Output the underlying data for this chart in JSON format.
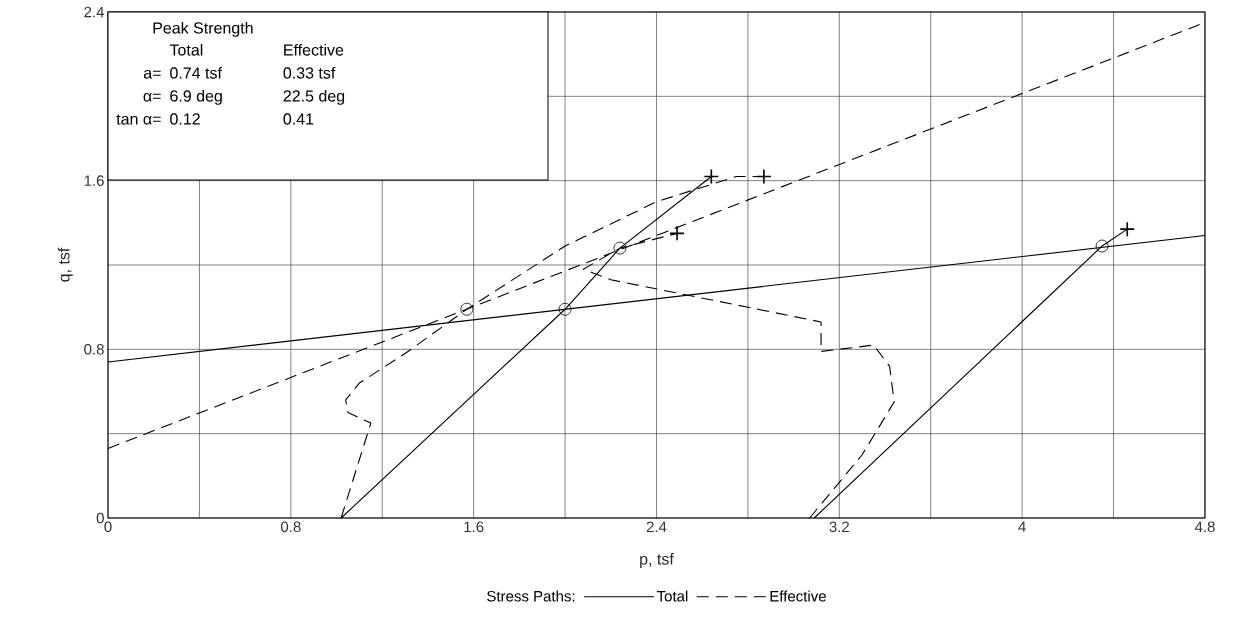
{
  "chart_data": {
    "type": "line",
    "xlabel": "p, tsf",
    "ylabel": "q, tsf",
    "legend_title": "Stress Paths:",
    "legend": "bottom",
    "grid": true,
    "xlim": [
      0,
      4.8
    ],
    "ylim": [
      0,
      2.4
    ],
    "xticks": [
      0,
      {
        "value": 0.4,
        "label": null
      },
      0.8,
      {
        "value": 1.2,
        "label": null
      },
      1.6,
      {
        "value": 2.0,
        "label": null
      },
      2.4,
      {
        "value": 2.8,
        "label": null
      },
      3.2,
      {
        "value": 3.6,
        "label": null
      },
      4,
      {
        "value": 4.4,
        "label": null
      },
      4.8
    ],
    "yticks": [
      0,
      {
        "value": 0.4,
        "label": null
      },
      0.8,
      {
        "value": 1.2,
        "label": null
      },
      1.6,
      {
        "value": 2.0,
        "label": null
      },
      2.4
    ],
    "annotations": [
      "Peak Strength",
      "Total",
      "Effective",
      "a=",
      "0.74 tsf",
      "0.33 tsf",
      "α=",
      "6.9 deg",
      "22.5 deg",
      "tan α=",
      "0.12",
      "0.41"
    ],
    "series": [
      {
        "color": "#000000",
        "line_style": "solid",
        "x": [
          0,
          4.8
        ],
        "values": [
          0.74,
          1.34
        ]
      },
      {
        "color": "#000000",
        "line_style": "dashed",
        "x": [
          0,
          4.8
        ],
        "values": [
          0.33,
          2.35
        ]
      },
      {
        "name": "Total",
        "color": "#000000",
        "line_style": "solid",
        "x": [
          1.02,
          2.0,
          2.24,
          2.64
        ],
        "values": [
          0,
          0.99,
          1.28,
          1.62
        ]
      },
      {
        "color": "#000000",
        "line_style": "solid",
        "x": [
          3.09,
          4.35,
          4.46
        ],
        "values": [
          0,
          1.29,
          1.37
        ]
      },
      {
        "name": "Effective",
        "color": "#000000",
        "line_style": "dashed",
        "x": [
          1.02,
          1.15,
          1.05,
          1.04,
          1.1,
          1.3,
          1.57,
          2.0,
          2.4,
          2.75,
          2.87
        ],
        "values": [
          0,
          0.45,
          0.5,
          0.56,
          0.64,
          0.78,
          0.99,
          1.29,
          1.5,
          1.62,
          1.62
        ]
      },
      {
        "color": "#000000",
        "line_style": "dashed",
        "x": [
          3.07,
          3.3,
          3.44,
          3.42,
          3.35,
          3.12,
          3.12,
          2.2,
          2.08,
          2.24,
          2.49
        ],
        "values": [
          0,
          0.3,
          0.55,
          0.72,
          0.82,
          0.79,
          0.93,
          1.13,
          1.18,
          1.28,
          1.35
        ]
      },
      {
        "type": "scatter",
        "color": "#000000",
        "marker": "circle",
        "x": [
          1.57,
          2.0,
          2.24,
          4.35
        ],
        "values": [
          0.99,
          0.99,
          1.28,
          1.29
        ]
      },
      {
        "type": "scatter",
        "color": "#000000",
        "marker": "cross",
        "x": [
          2.64,
          2.87,
          2.49,
          4.46
        ],
        "values": [
          1.62,
          1.62,
          1.35,
          1.37
        ]
      }
    ]
  }
}
